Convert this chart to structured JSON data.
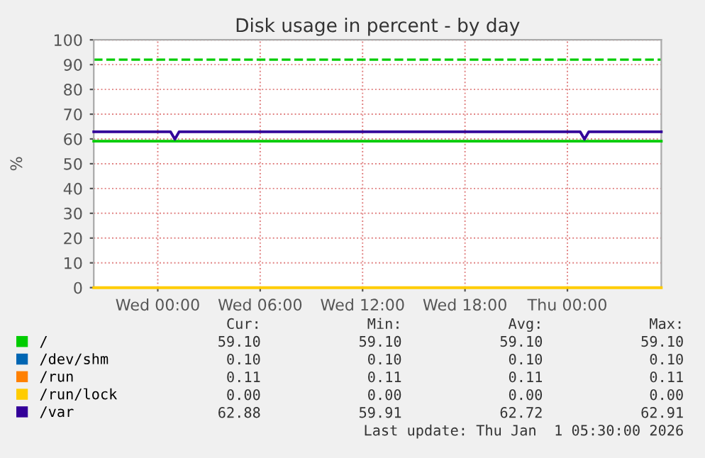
{
  "chart_data": {
    "type": "line",
    "title": "Disk usage in percent - by day",
    "ylabel": "%",
    "xlim": [
      "2025-12-30T20:15",
      "2026-01-01T05:30"
    ],
    "xticks": [
      {
        "value": "2025-12-31T00:00",
        "label": "Wed 00:00"
      },
      {
        "value": "2025-12-31T06:00",
        "label": "Wed 06:00"
      },
      {
        "value": "2025-12-31T12:00",
        "label": "Wed 12:00"
      },
      {
        "value": "2025-12-31T18:00",
        "label": "Wed 18:00"
      },
      {
        "value": "2026-01-01T00:00",
        "label": "Thu 00:00"
      }
    ],
    "ylim": [
      0,
      100
    ],
    "yticks": [
      0,
      10,
      20,
      30,
      40,
      50,
      60,
      70,
      80,
      90,
      100
    ],
    "grid": true,
    "legend": "bottom",
    "line_style": "solid",
    "marker": "none",
    "series": [
      {
        "name": "/",
        "color": "#00cc00",
        "x": [
          "2025-12-30T20:15",
          "2026-01-01T05:30"
        ],
        "values": [
          59.1,
          59.1
        ]
      },
      {
        "name": "/dev/shm",
        "color": "#0066b3"
      },
      {
        "name": "/run",
        "color": "#ff8000"
      },
      {
        "name": "/run/lock",
        "color": "#ffcc00",
        "x": [
          "2025-12-30T20:15",
          "2026-01-01T05:30"
        ],
        "values": [
          0,
          0
        ]
      },
      {
        "name": "/var",
        "color": "#330099",
        "x": [
          "2025-12-30T20:15",
          "2025-12-31T00:45",
          "2025-12-31T01:00",
          "2025-12-31T01:15",
          "2026-01-01T00:45",
          "2026-01-01T01:00",
          "2026-01-01T01:15",
          "2026-01-01T05:30"
        ],
        "values": [
          62.9,
          62.9,
          59.9,
          62.9,
          62.9,
          59.9,
          62.9,
          62.9
        ]
      }
    ],
    "ref_lines": [
      {
        "axis": "y",
        "value": 92,
        "color": "#00cc00",
        "line_style": "dashed"
      }
    ],
    "annotations": [
      "Cur:",
      "Min:",
      "Avg:",
      "Max:",
      "59.10",
      "59.10",
      "59.10",
      "59.10",
      "0.10",
      "0.10",
      "0.10",
      "0.10",
      "0.11",
      "0.11",
      "0.11",
      "0.11",
      "0.00",
      "0.00",
      "0.00",
      "0.00",
      "62.88",
      "59.91",
      "62.72",
      "62.91",
      "Last update: Thu Jan  1 05:30:00 2026"
    ]
  }
}
